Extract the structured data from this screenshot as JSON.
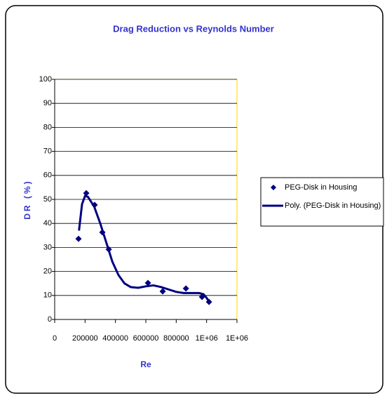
{
  "chart_data": {
    "type": "scatter",
    "title": "Drag Reduction vs Reynolds Number",
    "xlabel": "Re",
    "ylabel": "DR (%)",
    "xlim": [
      0,
      1200000
    ],
    "xticks": [
      0,
      200000,
      400000,
      600000,
      800000,
      {
        "value": 1000000,
        "label": "1E+06"
      },
      {
        "value": 1200000,
        "label": "1E+06"
      }
    ],
    "ylim": [
      0,
      100
    ],
    "yticks": [
      0,
      10,
      20,
      30,
      40,
      50,
      60,
      70,
      80,
      90,
      100
    ],
    "grid": true,
    "legend": "right",
    "series": [
      {
        "name": "PEG-Disk in Housing",
        "type": "scatter",
        "color": "#000080",
        "x": [
          157000,
          208000,
          263000,
          314000,
          356000,
          614000,
          711000,
          864000,
          970000,
          1016000
        ],
        "values": [
          33.6,
          52.6,
          47.7,
          36.3,
          29.2,
          15.2,
          11.7,
          12.9,
          9.4,
          7.3
        ]
      },
      {
        "name": "Poly. (PEG-Disk in Housing)",
        "type": "line",
        "color": "#000080",
        "x": [
          160000,
          180000,
          200000,
          220000,
          260000,
          300000,
          340000,
          380000,
          420000,
          460000,
          500000,
          550000,
          600000,
          650000,
          700000,
          750000,
          800000,
          850000,
          900000,
          950000,
          980000,
          1000000,
          1020000
        ],
        "values": [
          37,
          48,
          51.5,
          51,
          47,
          40,
          32,
          24,
          18.5,
          15,
          13.5,
          13.2,
          13.8,
          14.2,
          13.5,
          12.5,
          11.5,
          11,
          11,
          11,
          10.5,
          9,
          7
        ]
      }
    ]
  }
}
